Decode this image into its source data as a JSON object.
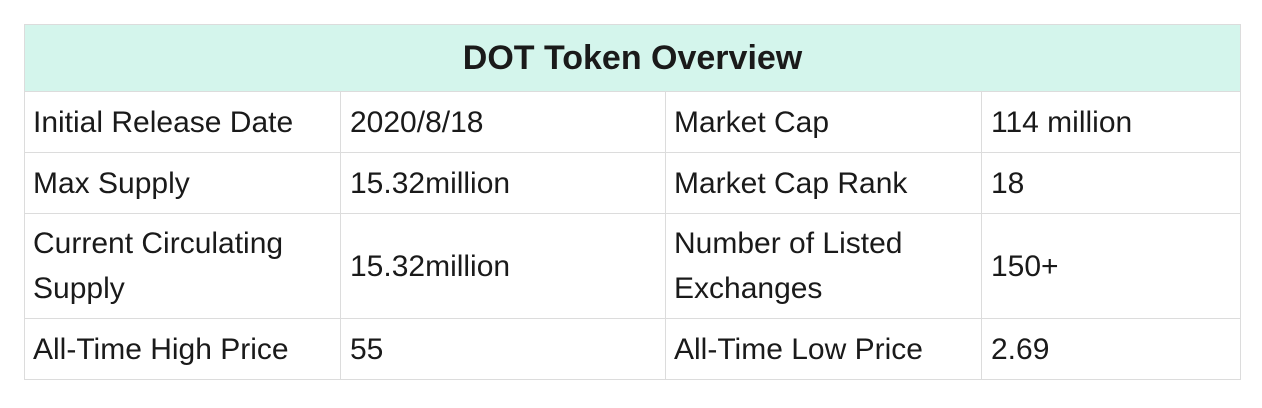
{
  "table": {
    "title": "DOT Token Overview",
    "rows": [
      {
        "label1": "Initial Release Date",
        "value1": "2020/8/18",
        "label2": "Market Cap",
        "value2": "114 million"
      },
      {
        "label1": "Max Supply",
        "value1": "15.32million",
        "label2": "Market Cap Rank",
        "value2": "18"
      },
      {
        "label1": "Current Circulating Supply",
        "value1": "15.32million",
        "label2": "Number of Listed Exchanges",
        "value2": "150+"
      },
      {
        "label1": "All-Time High Price",
        "value1": "55",
        "label2": "All-Time Low Price",
        "value2": "2.69"
      }
    ]
  }
}
